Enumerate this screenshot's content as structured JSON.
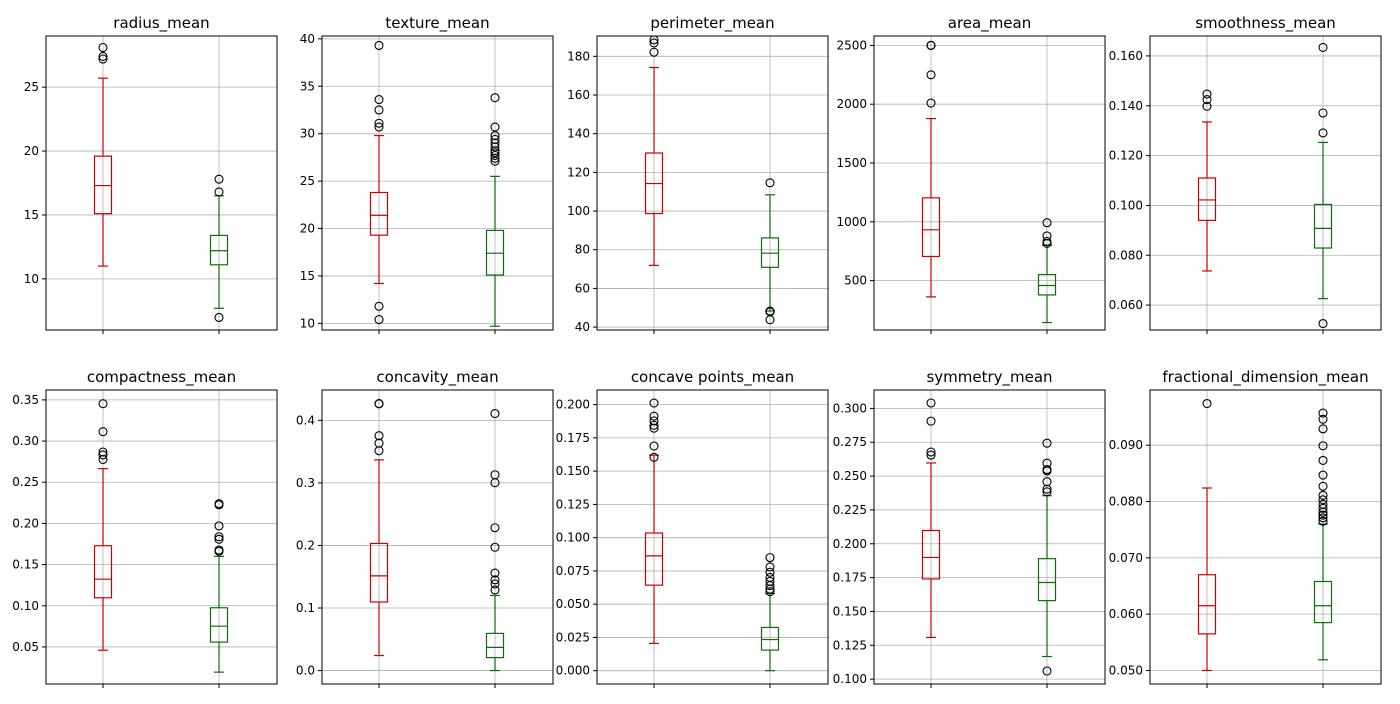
{
  "colors": {
    "group_a": "#cc0000",
    "group_b": "#0a6e0a",
    "grid": "#b0b0b0",
    "frame": "#000000",
    "outlier": "#000000"
  },
  "chart_data": [
    {
      "type": "box",
      "title": "radius_mean",
      "ylim": [
        6,
        29
      ],
      "yticks": [
        10,
        15,
        20,
        25
      ],
      "grid": true,
      "boxes": [
        {
          "min": 11.0,
          "q1": 15.1,
          "median": 17.3,
          "q3": 19.6,
          "max": 25.7,
          "outliers": [
            27.2,
            27.4,
            28.1
          ]
        },
        {
          "min": 7.7,
          "q1": 11.1,
          "median": 12.2,
          "q3": 13.4,
          "max": 16.5,
          "outliers": [
            6.98,
            16.8,
            17.8
          ]
        }
      ]
    },
    {
      "type": "box",
      "title": "texture_mean",
      "ylim": [
        9.3,
        40.3
      ],
      "yticks": [
        10,
        15,
        20,
        25,
        30,
        35,
        40
      ],
      "grid": true,
      "boxes": [
        {
          "min": 14.2,
          "q1": 19.3,
          "median": 21.4,
          "q3": 23.8,
          "max": 29.8,
          "outliers": [
            10.4,
            11.8,
            30.7,
            31.1,
            32.5,
            33.6,
            39.3
          ]
        },
        {
          "min": 9.7,
          "q1": 15.1,
          "median": 17.4,
          "q3": 19.8,
          "max": 25.5,
          "outliers": [
            27.1,
            27.4,
            27.7,
            28.0,
            28.2,
            28.6,
            29.0,
            29.4,
            29.8,
            30.7,
            33.8
          ]
        }
      ]
    },
    {
      "type": "box",
      "title": "perimeter_mean",
      "ylim": [
        38.5,
        190.5
      ],
      "yticks": [
        40,
        60,
        80,
        100,
        120,
        140,
        160,
        180
      ],
      "grid": true,
      "boxes": [
        {
          "min": 71.9,
          "q1": 98.7,
          "median": 114.2,
          "q3": 130.0,
          "max": 174.2,
          "outliers": [
            182.1,
            186.9,
            188.5
          ]
        },
        {
          "min": 48.3,
          "q1": 70.9,
          "median": 78.2,
          "q3": 86.1,
          "max": 108.4,
          "outliers": [
            43.8,
            47.9,
            48.3,
            114.6
          ]
        }
      ]
    },
    {
      "type": "box",
      "title": "area_mean",
      "ylim": [
        80,
        2580
      ],
      "yticks": [
        500,
        1000,
        1500,
        2000,
        2500
      ],
      "grid": true,
      "boxes": [
        {
          "min": 361.6,
          "q1": 705.3,
          "median": 932.0,
          "q3": 1204.0,
          "max": 1878.0,
          "outliers": [
            2010.0,
            2250.0,
            2499.0,
            2501.0
          ]
        },
        {
          "min": 143.5,
          "q1": 378.2,
          "median": 458.4,
          "q3": 551.1,
          "max": 800.0,
          "outliers": [
            815.8,
            832.9,
            880.2,
            992.1
          ]
        }
      ]
    },
    {
      "type": "box",
      "title": "smoothness_mean",
      "ylim": [
        0.05,
        0.168
      ],
      "yticks": [
        0.06,
        0.08,
        0.1,
        0.12,
        0.14,
        0.16
      ],
      "grid": true,
      "boxes": [
        {
          "min": 0.0737,
          "q1": 0.094,
          "median": 0.1022,
          "q3": 0.111,
          "max": 0.1335,
          "outliers": [
            0.1398,
            0.1425,
            0.1447
          ]
        },
        {
          "min": 0.0626,
          "q1": 0.0829,
          "median": 0.0908,
          "q3": 0.1004,
          "max": 0.1253,
          "outliers": [
            0.0526,
            0.1291,
            0.1371,
            0.1634
          ]
        }
      ]
    },
    {
      "type": "box",
      "title": "compactness_mean",
      "ylim": [
        0.005,
        0.362
      ],
      "yticks": [
        0.05,
        0.1,
        0.15,
        0.2,
        0.25,
        0.3,
        0.35
      ],
      "grid": true,
      "boxes": [
        {
          "min": 0.046,
          "q1": 0.1097,
          "median": 0.1323,
          "q3": 0.1729,
          "max": 0.2665,
          "outliers": [
            0.2776,
            0.2832,
            0.2867,
            0.3114,
            0.3454
          ]
        },
        {
          "min": 0.0194,
          "q1": 0.0559,
          "median": 0.0752,
          "q3": 0.0976,
          "max": 0.16,
          "outliers": [
            0.1661,
            0.1677,
            0.1807,
            0.1838,
            0.197,
            0.2225,
            0.2239
          ]
        }
      ]
    },
    {
      "type": "box",
      "title": "concavity_mean",
      "ylim": [
        -0.0215,
        0.4485
      ],
      "yticks": [
        0.0,
        0.1,
        0.2,
        0.3,
        0.4
      ],
      "grid": true,
      "boxes": [
        {
          "min": 0.024,
          "q1": 0.1096,
          "median": 0.1513,
          "q3": 0.2032,
          "max": 0.3368,
          "outliers": [
            0.3514,
            0.3635,
            0.3754,
            0.4264,
            0.4268
          ]
        },
        {
          "min": 0.0,
          "q1": 0.0207,
          "median": 0.0371,
          "q3": 0.0594,
          "max": 0.12,
          "outliers": [
            0.1288,
            0.1385,
            0.145,
            0.1559,
            0.1971,
            0.2283,
            0.3003,
            0.313,
            0.4108
          ]
        }
      ]
    },
    {
      "type": "box",
      "title": "concave points_mean",
      "ylim": [
        -0.01,
        0.211
      ],
      "yticks": [
        0.0,
        0.025,
        0.05,
        0.075,
        0.1,
        0.125,
        0.15,
        0.175,
        0.2
      ],
      "grid": true,
      "boxes": [
        {
          "min": 0.0205,
          "q1": 0.0643,
          "median": 0.0863,
          "q3": 0.1035,
          "max": 0.162,
          "outliers": [
            0.1604,
            0.1689,
            0.1823,
            0.1845,
            0.1878,
            0.1913,
            0.2012
          ]
        },
        {
          "min": 0.0,
          "q1": 0.0155,
          "median": 0.0234,
          "q3": 0.0325,
          "max": 0.058,
          "outliers": [
            0.0594,
            0.0613,
            0.064,
            0.0672,
            0.0701,
            0.074,
            0.078,
            0.085
          ]
        }
      ]
    },
    {
      "type": "box",
      "title": "symmetry_mean",
      "ylim": [
        0.0964,
        0.3136
      ],
      "yticks": [
        0.1,
        0.125,
        0.15,
        0.175,
        0.2,
        0.225,
        0.25,
        0.275,
        0.3
      ],
      "grid": true,
      "boxes": [
        {
          "min": 0.1308,
          "q1": 0.174,
          "median": 0.1899,
          "q3": 0.2098,
          "max": 0.2597,
          "outliers": [
            0.2655,
            0.2678,
            0.2906,
            0.304
          ]
        },
        {
          "min": 0.1167,
          "q1": 0.158,
          "median": 0.1714,
          "q3": 0.189,
          "max": 0.2355,
          "outliers": [
            0.106,
            0.2384,
            0.2403,
            0.2459,
            0.2538,
            0.2548,
            0.2595,
            0.2743
          ]
        }
      ]
    },
    {
      "type": "box",
      "title": "fractional_dimension_mean",
      "ylim": [
        0.0476,
        0.0998
      ],
      "yticks": [
        0.05,
        0.06,
        0.07,
        0.08,
        0.09
      ],
      "grid": true,
      "boxes": [
        {
          "min": 0.05,
          "q1": 0.0565,
          "median": 0.0615,
          "q3": 0.067,
          "max": 0.0824,
          "outliers": [
            0.0974
          ]
        },
        {
          "min": 0.0519,
          "q1": 0.0585,
          "median": 0.0615,
          "q3": 0.0658,
          "max": 0.076,
          "outliers": [
            0.0765,
            0.0771,
            0.0776,
            0.0781,
            0.0788,
            0.0795,
            0.0803,
            0.0811,
            0.0827,
            0.0847,
            0.0873,
            0.0899,
            0.0929,
            0.0946,
            0.0957
          ]
        }
      ]
    }
  ]
}
